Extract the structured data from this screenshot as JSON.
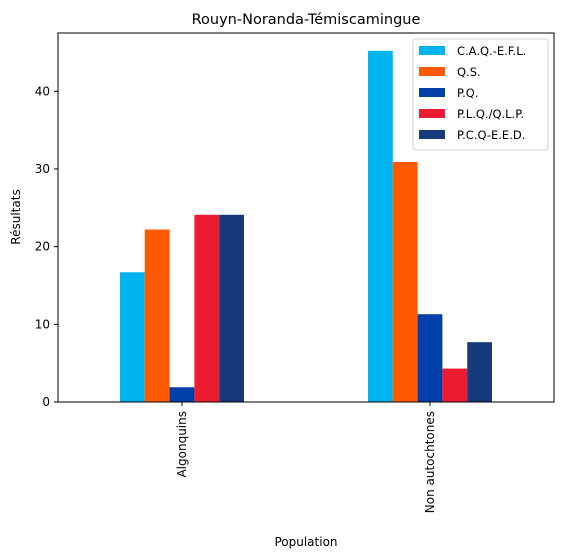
{
  "chart_data": {
    "type": "bar",
    "title": "Rouyn-Noranda-Témiscamingue",
    "xlabel": "Population",
    "ylabel": "Résultats",
    "categories": [
      "Algonquins",
      "Non autochtones"
    ],
    "ylim": [
      0,
      47.5
    ],
    "yticks": [
      0,
      10,
      20,
      30,
      40
    ],
    "grid": false,
    "legend_position": "top-right",
    "series": [
      {
        "name": "C.A.Q.-E.F.L.",
        "color": "#00b4ef",
        "values": [
          16.7,
          45.2
        ]
      },
      {
        "name": "Q.S.",
        "color": "#ff5a00",
        "values": [
          22.2,
          30.9
        ]
      },
      {
        "name": "P.Q.",
        "color": "#0040a8",
        "values": [
          1.9,
          11.3
        ]
      },
      {
        "name": "P.L.Q./Q.L.P.",
        "color": "#ee1c30",
        "values": [
          24.1,
          4.3
        ]
      },
      {
        "name": "P.C.Q-E.E.D.",
        "color": "#173a7a",
        "values": [
          24.1,
          7.7
        ]
      }
    ]
  }
}
